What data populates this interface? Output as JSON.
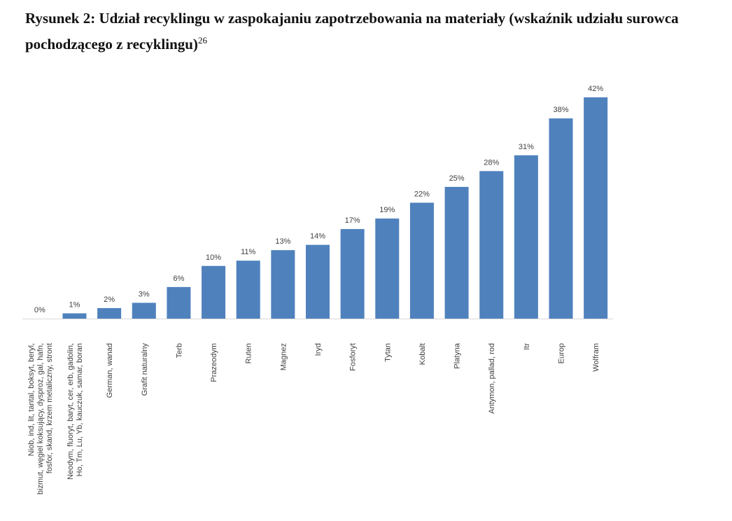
{
  "caption": {
    "text": "Rysunek 2: Udział recyklingu w zaspokajaniu zapotrzebowania na materiały (wskaźnik udziału surowca pochodzącego z recyklingu)",
    "footnote": "26"
  },
  "chart_data": {
    "type": "bar",
    "title": "",
    "xlabel": "",
    "ylabel": "",
    "ylim": [
      0,
      42
    ],
    "grid": false,
    "legend": "none",
    "bar_color": "#4f81bd",
    "categories": [
      [
        "Niob, ind, lit, tantal, boksyt, beryl,",
        "bizmut, węgiel koksujący, dysproz, gal, hafn,",
        "fosfor, skand, krzem metaliczny, stront"
      ],
      [
        "Neodym, fluoryt, baryt, cer, erb, gadolin,",
        "Ho, Tm, Lu, Yb, kauczuk, samar, boran"
      ],
      [
        "German, wanad"
      ],
      [
        "Grafit naturalny"
      ],
      [
        "Terb"
      ],
      [
        "Prazeodym"
      ],
      [
        "Ruten"
      ],
      [
        "Magnez"
      ],
      [
        "Iryd"
      ],
      [
        "Fosforyt"
      ],
      [
        "Tytan"
      ],
      [
        "Kobalt"
      ],
      [
        "Platyna"
      ],
      [
        "Antymon, pallad, rod"
      ],
      [
        "Itr"
      ],
      [
        "Europ"
      ],
      [
        "Wolfram"
      ]
    ],
    "values": [
      0,
      1,
      2,
      3,
      6,
      10,
      11,
      13,
      14,
      17,
      19,
      22,
      25,
      28,
      31,
      38,
      42
    ],
    "data_labels": [
      "0%",
      "1%",
      "2%",
      "3%",
      "6%",
      "10%",
      "11%",
      "13%",
      "14%",
      "17%",
      "19%",
      "22%",
      "25%",
      "28%",
      "31%",
      "38%",
      "42%"
    ]
  }
}
